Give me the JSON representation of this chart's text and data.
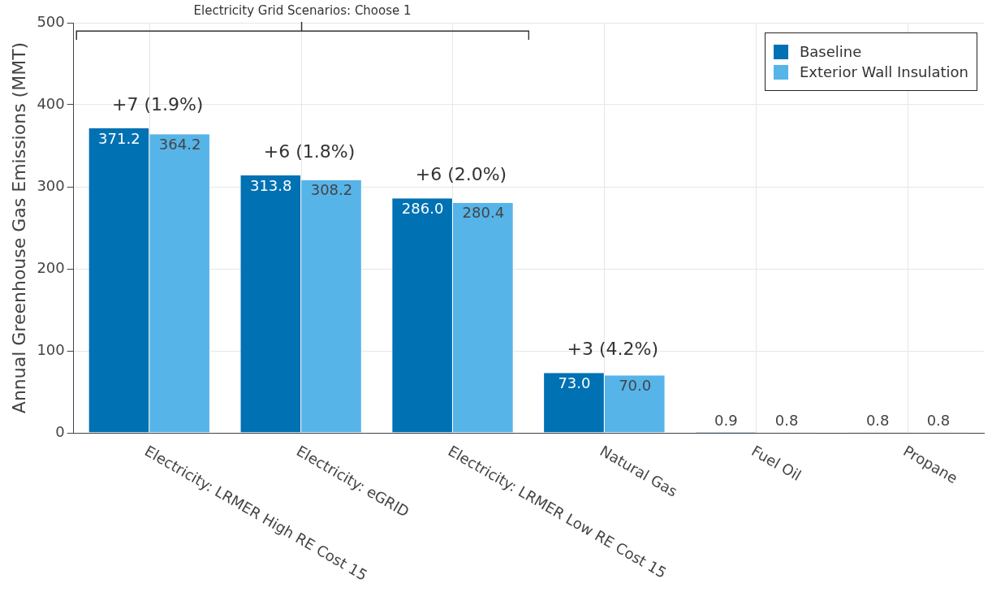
{
  "chart_data": {
    "type": "bar",
    "ylabel": "Annual Greenhouse Gas Emissions (MMT)",
    "categories": [
      "Electricity: LRMER High RE Cost 15",
      "Electricity: eGRID",
      "Electricity: LRMER Low RE Cost 15",
      "Natural Gas",
      "Fuel Oil",
      "Propane"
    ],
    "series": [
      {
        "name": "Baseline",
        "color": "#0071b2",
        "values": [
          371.2,
          313.8,
          286.0,
          73.0,
          0.9,
          0.8
        ],
        "value_labels": [
          "371.2",
          "313.8",
          "286.0",
          "73.0",
          "0.9",
          "0.8"
        ]
      },
      {
        "name": "Exterior Wall Insulation",
        "color": "#56b4e9",
        "values": [
          364.2,
          308.2,
          280.4,
          70.0,
          0.8,
          0.8
        ],
        "value_labels": [
          "364.2",
          "308.2",
          "280.4",
          "70.0",
          "0.8",
          "0.8"
        ]
      }
    ],
    "ylim": [
      0,
      500
    ],
    "yticks": [
      0,
      100,
      200,
      300,
      400,
      500
    ],
    "grid": true,
    "legend": "top right",
    "annotations": [
      "Electricity Grid Scenarios: Choose 1",
      "+7 (1.9%)",
      "+6 (1.8%)",
      "+6 (2.0%)",
      "+3 (4.2%)"
    ]
  }
}
